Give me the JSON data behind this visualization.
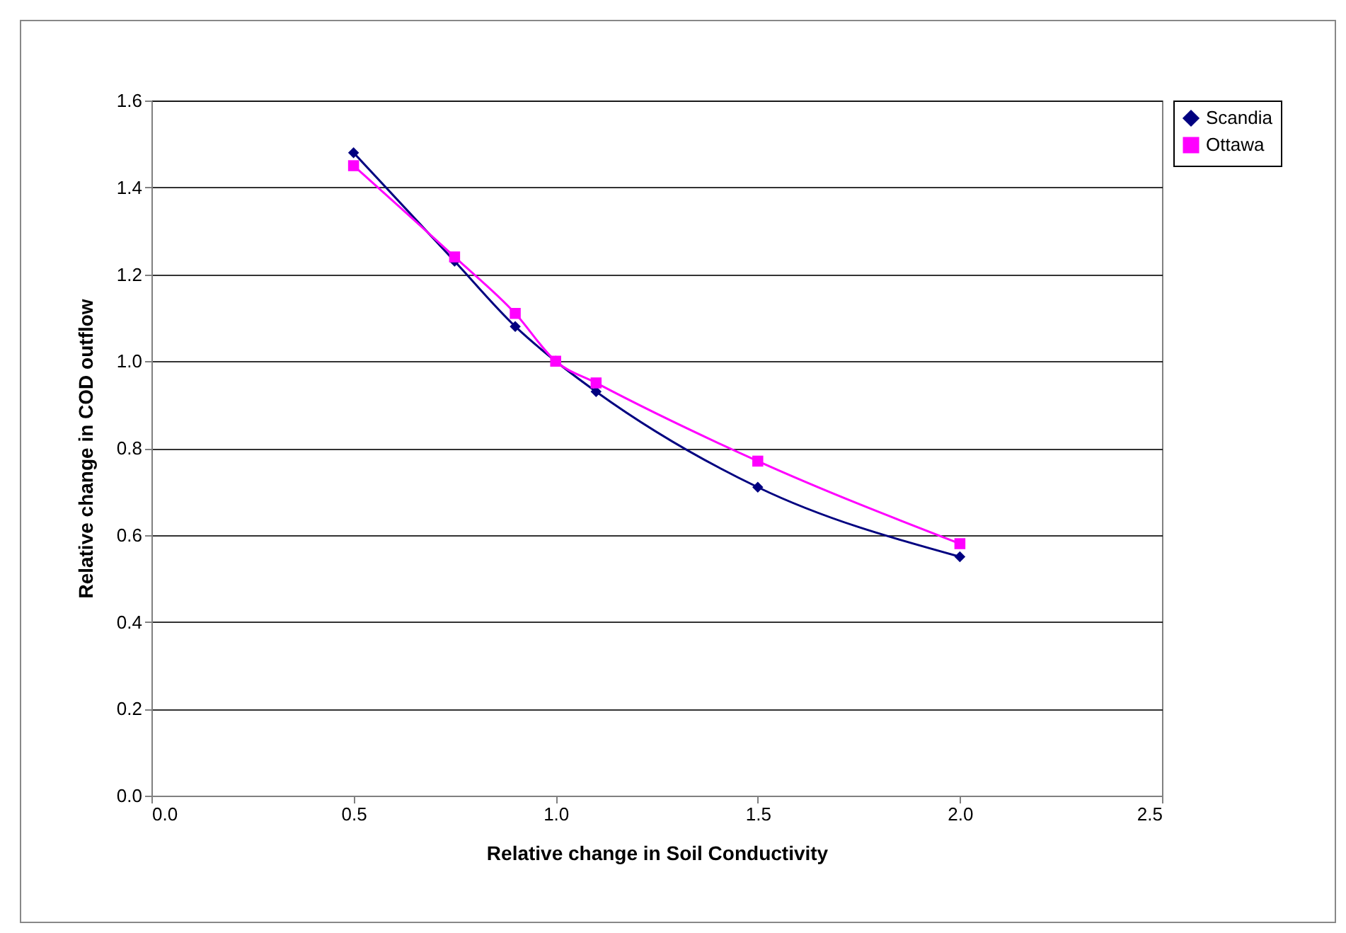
{
  "chart_data": {
    "type": "line",
    "xlabel": "Relative change in Soil Conductivity",
    "ylabel": "Relative change in COD outflow",
    "x": [
      0.5,
      0.75,
      0.9,
      1.0,
      1.1,
      1.5,
      2.0
    ],
    "series": [
      {
        "name": "Scandia",
        "color": "#000080",
        "marker": "diamond",
        "values": [
          1.48,
          1.23,
          1.08,
          1.0,
          0.93,
          0.71,
          0.55
        ]
      },
      {
        "name": "Ottawa",
        "color": "#ff00ff",
        "marker": "square",
        "values": [
          1.45,
          1.24,
          1.11,
          1.0,
          0.95,
          0.77,
          0.58
        ]
      }
    ],
    "xlim": [
      0,
      2.5
    ],
    "xticks": [
      {
        "value": 0,
        "label": "0.0"
      },
      0.5,
      {
        "value": 1,
        "label": "1.0"
      },
      1.5,
      {
        "value": 2,
        "label": "2.0"
      },
      2.5
    ],
    "ylim": [
      0,
      1.6
    ],
    "yticks": [
      {
        "value": 0,
        "label": "0.0"
      },
      0.2,
      0.4,
      0.6,
      0.8,
      {
        "value": 1,
        "label": "1.0"
      },
      1.2,
      1.4,
      1.6
    ],
    "grid": "y",
    "legend": "right",
    "line_style": "solid"
  }
}
